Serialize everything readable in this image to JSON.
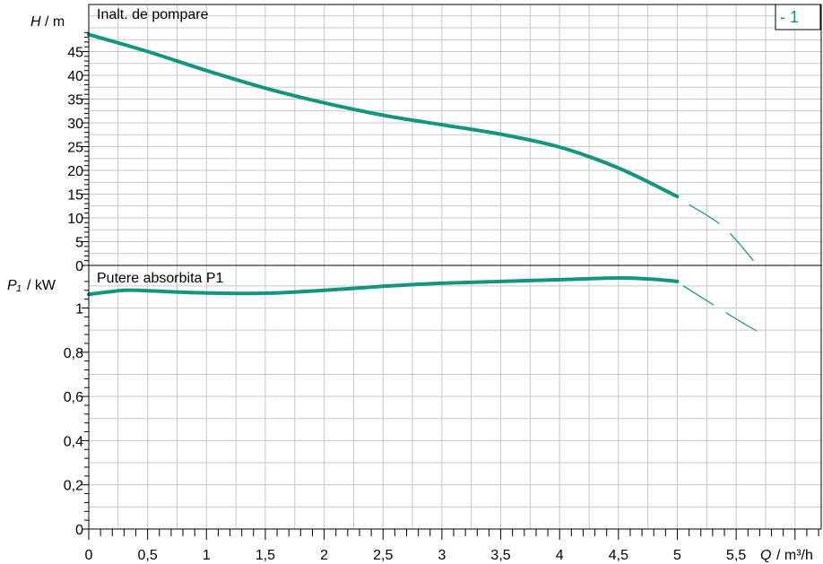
{
  "legend": {
    "label": "- 1",
    "color": "#13957f"
  },
  "chart_data": [
    {
      "type": "line",
      "panel_label": "Inalt. de pompare",
      "ylabel_var": "H",
      "ylabel_unit": "/ m",
      "ylim": [
        0,
        50
      ],
      "yticks": [
        0,
        5,
        10,
        15,
        20,
        25,
        30,
        35,
        40,
        45
      ],
      "ytick_labels": [
        "0",
        "5",
        "10",
        "15",
        "20",
        "25",
        "30",
        "35",
        "40",
        "45"
      ],
      "series": [
        {
          "name": "- 1",
          "color": "#13957f",
          "points": [
            [
              0,
              48.6
            ],
            [
              0.5,
              45.0
            ],
            [
              1,
              41.0
            ],
            [
              1.5,
              37.3
            ],
            [
              2,
              34.2
            ],
            [
              2.5,
              31.6
            ],
            [
              3,
              29.6
            ],
            [
              3.5,
              27.6
            ],
            [
              4,
              24.9
            ],
            [
              4.5,
              20.5
            ],
            [
              5,
              14.5
            ]
          ],
          "extrapolated": [
            [
              5.1,
              12.8
            ],
            [
              5.4,
              7.9
            ],
            [
              5.68,
              0
            ]
          ]
        }
      ]
    },
    {
      "type": "line",
      "panel_label": "Putere absorbita P1",
      "ylabel_var": "P₁",
      "ylabel_unit": "/ kW",
      "ylim": [
        0,
        1.1
      ],
      "yticks": [
        0,
        0.2,
        0.4,
        0.6,
        0.8,
        1
      ],
      "ytick_labels": [
        "0",
        "0,2",
        "0,4",
        "0,6",
        "0,8",
        "1"
      ],
      "xlabel_var": "Q",
      "xlabel_unit": "/ m³/h",
      "xlim": [
        0,
        6.2
      ],
      "xticks": [
        0,
        0.5,
        1,
        1.5,
        2,
        2.5,
        3,
        3.5,
        4,
        4.5,
        5,
        5.5
      ],
      "xtick_labels": [
        "0",
        "0,5",
        "1",
        "1,5",
        "2",
        "2,5",
        "3",
        "3,5",
        "4",
        "4,5",
        "5",
        "5,5"
      ],
      "series": [
        {
          "name": "- 1",
          "color": "#13957f",
          "points": [
            [
              0,
              1.062
            ],
            [
              0.3,
              1.08
            ],
            [
              0.5,
              1.078
            ],
            [
              1,
              1.068
            ],
            [
              1.5,
              1.067
            ],
            [
              2,
              1.08
            ],
            [
              2.5,
              1.098
            ],
            [
              3,
              1.112
            ],
            [
              3.5,
              1.12
            ],
            [
              4,
              1.128
            ],
            [
              4.5,
              1.136
            ],
            [
              4.8,
              1.13
            ],
            [
              5,
              1.12
            ]
          ],
          "extrapolated": [
            [
              5.05,
              1.1
            ],
            [
              5.5,
              0.95
            ],
            [
              5.68,
              0.895
            ]
          ]
        }
      ]
    }
  ]
}
